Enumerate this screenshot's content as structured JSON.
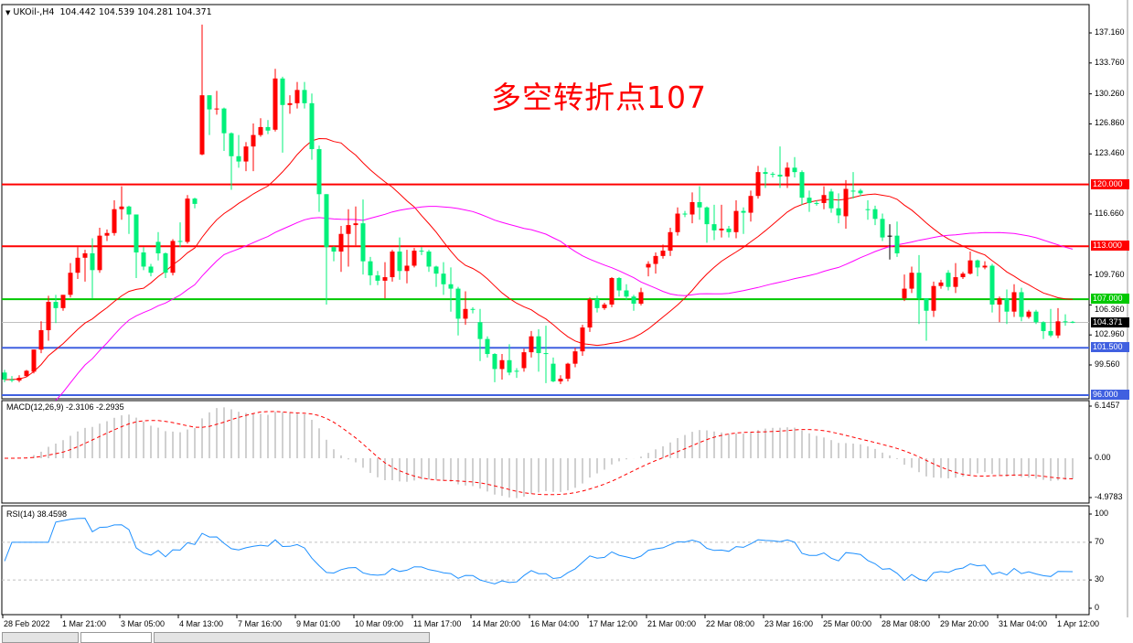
{
  "header": {
    "symbol": "UKOil-,H4",
    "ohlc": "104.442 104.539 104.281 104.371",
    "menu_icon": "triangle-down-icon"
  },
  "annotation": "多空转折点107",
  "colors": {
    "up": "#ff0000",
    "down": "#00f07a",
    "ma_fast": "#ff0000",
    "ma_slow": "#ff00ff",
    "macd_hist": "#c0c0c0",
    "macd_signal": "#ff0000",
    "rsi": "#1e90ff"
  },
  "chart_data": {
    "type": "candlestick",
    "symbol": "UKOil-",
    "timeframe": "H4",
    "grid": false,
    "price_axis": {
      "ticks": [
        "137.160",
        "133.760",
        "130.260",
        "126.860",
        "123.460",
        "116.660",
        "109.760",
        "106.360",
        "102.960",
        "99.560"
      ],
      "range": [
        95.8,
        139.5
      ]
    },
    "time_axis": {
      "ticks": [
        "28 Feb 2022",
        "1 Mar 21:00",
        "3 Mar 05:00",
        "4 Mar 13:00",
        "7 Mar 16:00",
        "9 Mar 01:00",
        "10 Mar 09:00",
        "11 Mar 17:00",
        "14 Mar 20:00",
        "16 Mar 04:00",
        "17 Mar 12:00",
        "21 Mar 00:00",
        "22 Mar 08:00",
        "23 Mar 16:00",
        "25 Mar 00:00",
        "28 Mar 08:00",
        "29 Mar 20:00",
        "31 Mar 04:00",
        "1 Apr 12:00"
      ]
    },
    "current_price": {
      "label": "104.371",
      "value": 104.371
    },
    "hlines": [
      {
        "label": "120.000",
        "value": 120.0,
        "color": "#ff0000"
      },
      {
        "label": "113.000",
        "value": 113.0,
        "color": "#ff0000"
      },
      {
        "label": "107.000",
        "value": 107.0,
        "color": "#00c800"
      },
      {
        "label": "101.500",
        "value": 101.5,
        "color": "#4060e0"
      },
      {
        "label": "96.000",
        "value": 96.0,
        "color": "#4060e0"
      }
    ],
    "candles": [
      [
        98.7,
        99.0,
        97.6,
        97.9
      ],
      [
        97.9,
        98.3,
        97.6,
        97.9
      ],
      [
        97.8,
        98.4,
        97.6,
        98.1
      ],
      [
        98.3,
        99.0,
        98.2,
        98.9
      ],
      [
        98.8,
        101.3,
        98.6,
        101.3
      ],
      [
        101.3,
        104.5,
        100.9,
        103.5
      ],
      [
        103.5,
        107.4,
        102.3,
        106.7
      ],
      [
        106.7,
        107.5,
        104.3,
        106.0
      ],
      [
        106.0,
        107.5,
        105.7,
        107.5
      ],
      [
        107.5,
        111.1,
        107.2,
        110.0
      ],
      [
        110.0,
        112.9,
        109.3,
        111.7
      ],
      [
        111.7,
        112.6,
        109.0,
        112.2
      ],
      [
        112.2,
        113.9,
        107.1,
        110.3
      ],
      [
        110.3,
        115.1,
        110.0,
        114.2
      ],
      [
        114.2,
        114.9,
        113.6,
        114.5
      ],
      [
        114.5,
        118.2,
        114.2,
        117.2
      ],
      [
        117.2,
        119.8,
        116.0,
        117.5
      ],
      [
        117.5,
        117.6,
        114.4,
        116.6
      ],
      [
        116.6,
        116.6,
        109.4,
        112.3
      ],
      [
        112.3,
        112.9,
        110.3,
        110.7
      ],
      [
        110.7,
        111.0,
        109.6,
        110.0
      ],
      [
        113.5,
        114.6,
        111.4,
        112.2
      ],
      [
        112.2,
        112.3,
        109.4,
        110.0
      ],
      [
        110.0,
        113.8,
        109.7,
        113.6
      ],
      [
        113.6,
        115.7,
        112.9,
        113.5
      ],
      [
        113.5,
        118.8,
        113.3,
        118.4
      ],
      [
        118.4,
        118.5,
        117.3,
        117.8
      ],
      [
        123.4,
        138.1,
        123.3,
        130.1
      ],
      [
        130.1,
        130.1,
        125.6,
        128.5
      ],
      [
        128.5,
        130.6,
        127.9,
        128.6
      ],
      [
        128.6,
        128.7,
        123.8,
        125.8
      ],
      [
        125.8,
        125.9,
        119.4,
        123.2
      ],
      [
        123.2,
        125.6,
        121.9,
        122.6
      ],
      [
        122.6,
        124.8,
        121.5,
        124.3
      ],
      [
        124.3,
        126.9,
        121.5,
        125.6
      ],
      [
        125.6,
        127.5,
        125.4,
        126.5
      ],
      [
        126.5,
        127.3,
        125.7,
        126.1
      ],
      [
        126.2,
        133.1,
        126.0,
        132.0
      ],
      [
        132.0,
        132.2,
        123.6,
        129.0
      ],
      [
        129.0,
        130.1,
        128.0,
        129.2
      ],
      [
        129.2,
        131.6,
        128.6,
        130.7
      ],
      [
        130.7,
        131.6,
        128.6,
        129.2
      ],
      [
        129.2,
        130.3,
        122.8,
        124.0
      ],
      [
        124.0,
        124.4,
        116.9,
        118.9
      ],
      [
        118.9,
        118.9,
        106.4,
        112.9
      ],
      [
        112.9,
        113.0,
        111.3,
        112.4
      ],
      [
        112.4,
        115.3,
        110.1,
        114.4
      ],
      [
        114.4,
        117.2,
        110.7,
        115.4
      ],
      [
        115.4,
        117.5,
        113.1,
        115.6
      ],
      [
        115.6,
        118.3,
        109.8,
        111.3
      ],
      [
        111.3,
        111.8,
        108.6,
        109.7
      ],
      [
        109.7,
        110.2,
        108.6,
        109.1
      ],
      [
        109.1,
        111.2,
        107.1,
        109.5
      ],
      [
        109.5,
        112.6,
        109.0,
        112.4
      ],
      [
        112.4,
        114.0,
        109.2,
        110.2
      ],
      [
        110.2,
        112.6,
        108.8,
        110.8
      ],
      [
        110.8,
        112.8,
        110.6,
        112.5
      ],
      [
        112.5,
        112.9,
        112.0,
        112.4
      ],
      [
        112.4,
        112.6,
        110.1,
        110.7
      ],
      [
        110.7,
        110.8,
        108.4,
        109.9
      ],
      [
        109.9,
        111.2,
        107.5,
        108.7
      ],
      [
        108.7,
        110.6,
        105.6,
        108.2
      ],
      [
        108.2,
        108.4,
        102.9,
        104.8
      ],
      [
        104.8,
        107.9,
        104.1,
        105.9
      ],
      [
        105.9,
        106.1,
        105.4,
        105.8
      ],
      [
        104.4,
        105.9,
        100.0,
        102.5
      ],
      [
        102.5,
        102.8,
        100.4,
        100.8
      ],
      [
        100.8,
        100.9,
        97.6,
        99.1
      ],
      [
        99.1,
        100.8,
        97.9,
        100.1
      ],
      [
        100.1,
        101.9,
        98.4,
        98.7
      ],
      [
        98.9,
        99.2,
        98.1,
        98.9
      ],
      [
        99.2,
        101.4,
        98.8,
        101.0
      ],
      [
        101.0,
        103.4,
        100.4,
        102.8
      ],
      [
        102.8,
        103.6,
        98.8,
        100.9
      ],
      [
        100.9,
        104.0,
        97.5,
        100.9
      ],
      [
        99.7,
        100.4,
        97.6,
        97.7
      ],
      [
        97.7,
        98.4,
        97.4,
        98.0
      ],
      [
        98.0,
        99.8,
        97.7,
        99.7
      ],
      [
        99.7,
        101.5,
        99.3,
        101.1
      ],
      [
        101.1,
        104.1,
        100.6,
        103.8
      ],
      [
        103.8,
        107.2,
        103.3,
        107.0
      ],
      [
        107.0,
        107.4,
        105.5,
        106.0
      ],
      [
        106.0,
        106.6,
        105.8,
        106.4
      ],
      [
        106.4,
        109.5,
        106.1,
        109.4
      ],
      [
        109.4,
        109.5,
        107.3,
        108.0
      ],
      [
        108.0,
        108.7,
        106.9,
        107.3
      ],
      [
        107.3,
        107.5,
        105.7,
        106.5
      ],
      [
        106.5,
        108.3,
        106.3,
        107.8
      ],
      [
        110.6,
        111.3,
        109.6,
        111.0
      ],
      [
        111.0,
        112.3,
        109.9,
        111.9
      ],
      [
        111.9,
        113.2,
        111.6,
        112.5
      ],
      [
        112.5,
        115.1,
        111.9,
        114.6
      ],
      [
        114.6,
        117.4,
        114.2,
        116.7
      ],
      [
        116.7,
        117.0,
        116.3,
        116.6
      ],
      [
        116.6,
        119.1,
        115.6,
        118.0
      ],
      [
        118.0,
        119.8,
        116.0,
        117.4
      ],
      [
        117.4,
        117.5,
        113.4,
        115.5
      ],
      [
        115.5,
        117.7,
        113.7,
        114.8
      ],
      [
        114.8,
        117.7,
        114.0,
        115.0
      ],
      [
        115.0,
        115.3,
        114.0,
        114.6
      ],
      [
        114.6,
        118.2,
        113.9,
        117.0
      ],
      [
        117.0,
        117.4,
        114.4,
        116.8
      ],
      [
        116.8,
        119.3,
        115.8,
        118.7
      ],
      [
        118.7,
        122.1,
        118.4,
        121.4
      ],
      [
        121.4,
        121.9,
        119.6,
        121.2
      ],
      [
        121.2,
        121.4,
        120.8,
        121.1
      ],
      [
        121.1,
        124.3,
        119.6,
        120.9
      ],
      [
        120.9,
        122.5,
        119.6,
        121.9
      ],
      [
        121.9,
        123.1,
        120.8,
        121.4
      ],
      [
        121.4,
        121.6,
        117.7,
        118.5
      ],
      [
        118.5,
        119.3,
        116.9,
        117.9
      ],
      [
        117.9,
        118.2,
        117.6,
        117.9
      ],
      [
        117.9,
        119.8,
        117.2,
        118.8
      ],
      [
        119.2,
        119.5,
        116.8,
        117.3
      ],
      [
        117.3,
        119.0,
        115.6,
        116.5
      ],
      [
        116.4,
        120.5,
        115.0,
        119.5
      ],
      [
        119.3,
        121.4,
        118.4,
        119.3
      ],
      [
        119.3,
        119.5,
        118.7,
        119.0
      ],
      [
        117.2,
        118.2,
        116.0,
        117.2
      ],
      [
        117.2,
        117.6,
        115.4,
        116.1
      ],
      [
        116.1,
        116.7,
        113.6,
        114.0
      ],
      [
        114.2,
        115.5,
        111.5,
        114.2
      ],
      [
        114.2,
        115.8,
        111.8,
        112.2
      ],
      [
        107.1,
        109.8,
        106.8,
        108.2
      ],
      [
        108.2,
        110.7,
        107.7,
        110.0
      ],
      [
        110.0,
        112.0,
        104.2,
        107.1
      ],
      [
        107.1,
        107.1,
        102.3,
        105.7
      ],
      [
        105.7,
        109.0,
        105.0,
        108.5
      ],
      [
        108.5,
        109.2,
        108.2,
        108.9
      ],
      [
        110.0,
        110.3,
        108.0,
        108.4
      ],
      [
        108.4,
        111.1,
        107.7,
        109.5
      ],
      [
        109.5,
        110.1,
        109.3,
        109.9
      ],
      [
        109.9,
        112.4,
        109.8,
        111.4
      ],
      [
        111.4,
        111.5,
        109.6,
        110.6
      ],
      [
        110.6,
        111.3,
        110.4,
        110.8
      ],
      [
        110.8,
        111.0,
        105.5,
        106.4
      ],
      [
        106.4,
        107.3,
        104.4,
        107.1
      ],
      [
        107.1,
        108.1,
        104.2,
        105.6
      ],
      [
        105.6,
        108.7,
        105.0,
        107.8
      ],
      [
        107.8,
        108.3,
        104.5,
        105.0
      ],
      [
        105.0,
        105.8,
        104.8,
        105.6
      ],
      [
        105.6,
        105.8,
        104.2,
        104.4
      ],
      [
        104.4,
        104.5,
        102.5,
        103.4
      ],
      [
        103.4,
        105.9,
        102.7,
        102.9
      ],
      [
        102.9,
        106.0,
        102.6,
        104.5
      ],
      [
        104.5,
        105.3,
        104.0,
        104.4
      ],
      [
        104.442,
        104.539,
        104.281,
        104.371
      ]
    ],
    "indicators": {
      "macd": {
        "label": "MACD(12,26,9) -2.3106 -2.2935",
        "axis": [
          "6.1457",
          "0.00",
          "-4.9783"
        ],
        "range": [
          -4.9783,
          6.1457
        ]
      },
      "rsi": {
        "label": "RSI(14) 38.4598",
        "axis": [
          "100",
          "70",
          "30",
          "0"
        ],
        "levels": [
          30,
          70
        ]
      }
    }
  }
}
